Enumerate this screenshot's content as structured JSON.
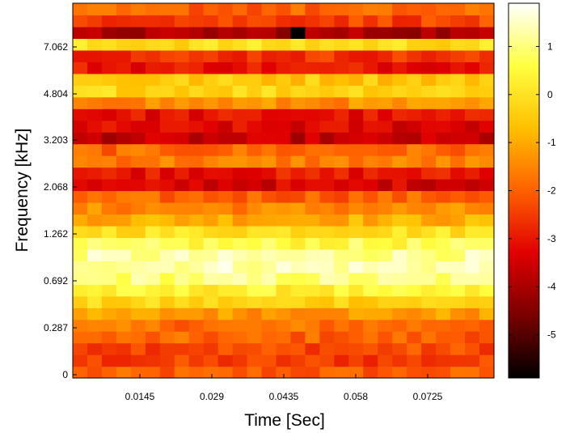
{
  "chart_data": {
    "type": "heatmap",
    "title": "",
    "xlabel": "Time [Sec]",
    "ylabel": "Frequency [kHz]",
    "x_ticks": [
      "0.0145",
      "0.029",
      "0.0435",
      "0.058",
      "0.0725"
    ],
    "y_ticks": [
      "0",
      "0.287",
      "0.692",
      "1.262",
      "2.068",
      "3.203",
      "4.804",
      "7.062"
    ],
    "colorbar": {
      "range": [
        -5.9,
        1.9
      ],
      "ticks": [
        "1",
        "0",
        "-1",
        "-2",
        "-3",
        "-4",
        "-5"
      ],
      "colormap": "hot",
      "stops": [
        "#000000",
        "#7a0000",
        "#e00000",
        "#ff6000",
        "#ffc000",
        "#ffff40",
        "#ffffff"
      ]
    },
    "n_time_bins": 29,
    "n_freq_bins": 32,
    "rows_bottom_to_top": [
      {
        "band": "bottom-noise",
        "value": -2.1
      },
      {
        "band": "low-1",
        "value": -2.5
      },
      {
        "band": "low-2",
        "value": -2.3
      },
      {
        "band": "low-3",
        "value": -2.0
      },
      {
        "band": "low-4",
        "value": -1.8
      },
      {
        "band": "rise",
        "value": -1.2
      },
      {
        "band": "bright-1",
        "value": -0.3
      },
      {
        "band": "bright-2",
        "value": 0.3
      },
      {
        "band": "peak-1",
        "value": 1.0
      },
      {
        "band": "peak-2",
        "value": 1.4
      },
      {
        "band": "peak-3",
        "value": 1.2
      },
      {
        "band": "bright-3",
        "value": 0.6
      },
      {
        "band": "bright-4",
        "value": 0.0
      },
      {
        "band": "mid-1",
        "value": -0.9
      },
      {
        "band": "mid-2",
        "value": -1.5
      },
      {
        "band": "mid-3",
        "value": -2.0
      },
      {
        "band": "dark-1",
        "value": -3.4
      },
      {
        "band": "dark-2",
        "value": -3.0
      },
      {
        "band": "mid-4",
        "value": -1.6
      },
      {
        "band": "mid-5",
        "value": -1.9
      },
      {
        "band": "dark-3",
        "value": -3.7
      },
      {
        "band": "dark-4",
        "value": -3.3
      },
      {
        "band": "dark-5",
        "value": -3.1
      },
      {
        "band": "mid-6",
        "value": -1.4
      },
      {
        "band": "bright-5",
        "value": -0.2
      },
      {
        "band": "bright-6",
        "value": -0.5
      },
      {
        "band": "dark-6",
        "value": -3.0
      },
      {
        "band": "dark-7",
        "value": -2.6
      },
      {
        "band": "bright-7",
        "value": -0.1
      },
      {
        "band": "top-dark",
        "value": -4.0
      },
      {
        "band": "top-mid",
        "value": -2.4
      },
      {
        "band": "top-edge",
        "value": -2.0
      }
    ]
  }
}
